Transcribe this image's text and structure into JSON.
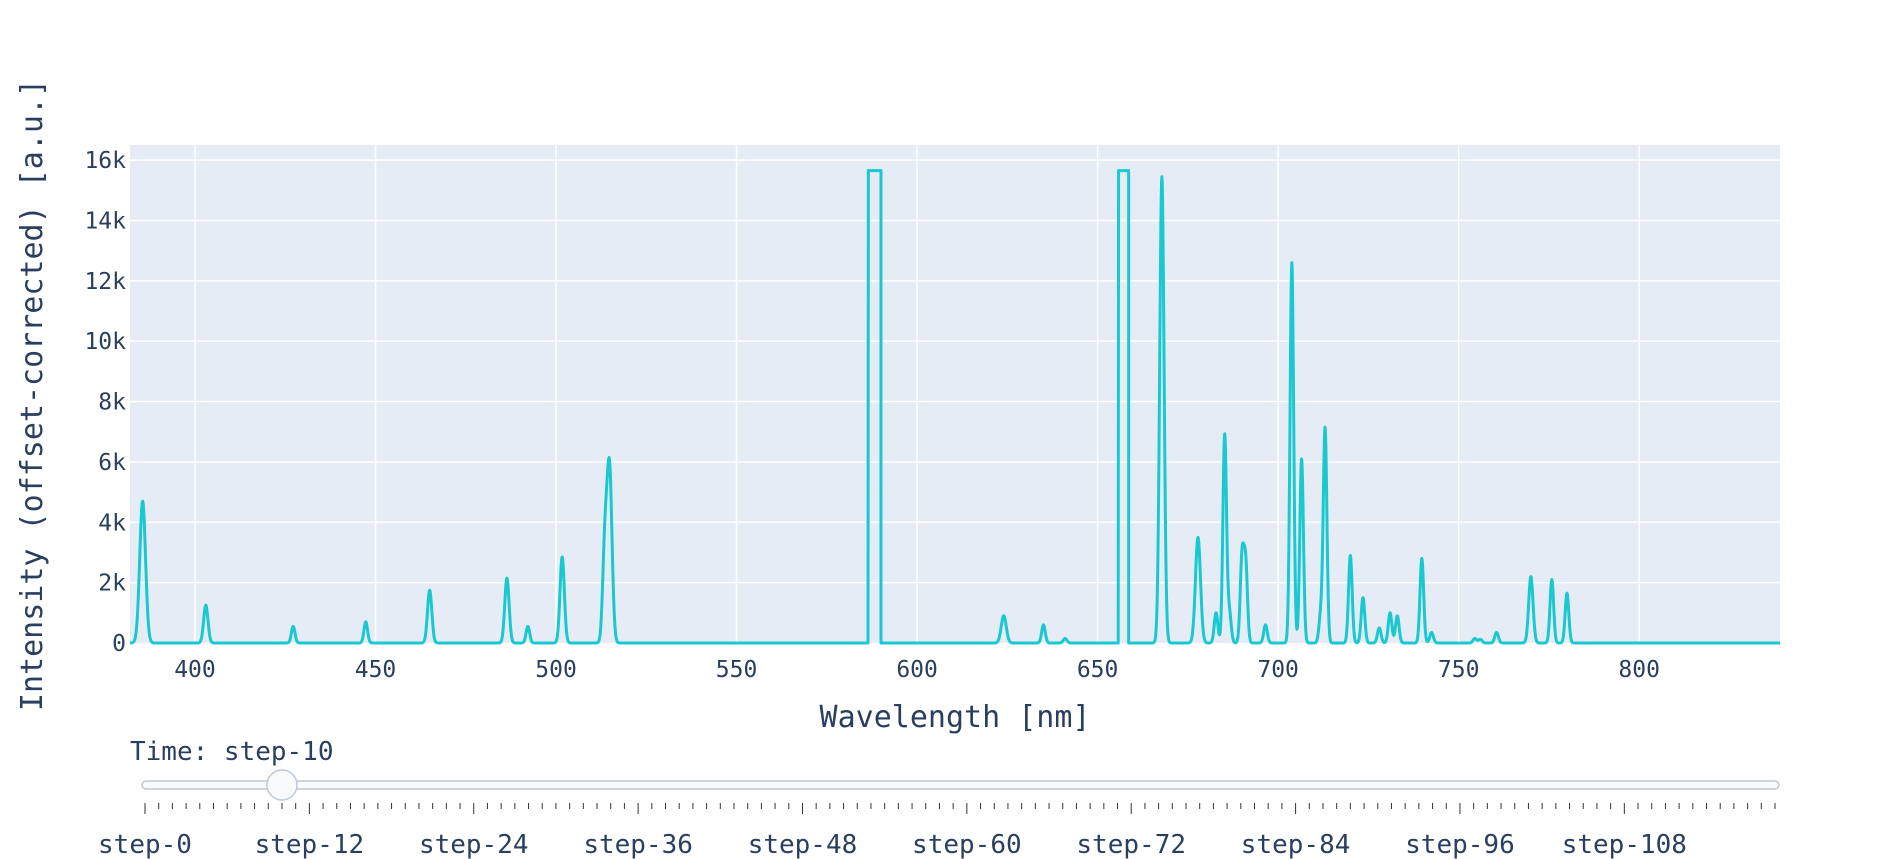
{
  "chart_data": {
    "type": "line",
    "xlabel": "Wavelength [nm]",
    "ylabel": "Intensity (offset-corrected) [a.u.]",
    "xlim": [
      382,
      839
    ],
    "ylim": [
      0,
      16500
    ],
    "x_ticks": [
      400,
      450,
      500,
      550,
      600,
      650,
      700,
      750,
      800
    ],
    "y_ticks": [
      0,
      2000,
      4000,
      6000,
      8000,
      10000,
      12000,
      14000,
      16000
    ],
    "y_tick_labels": [
      "0",
      "2k",
      "4k",
      "6k",
      "8k",
      "10k",
      "12k",
      "14k",
      "16k"
    ],
    "grid": true,
    "legend": false,
    "line_color": "#19c8d0",
    "plot_bgcolor": "#e5ecf6",
    "series": [
      {
        "peaks": [
          {
            "center": 385.5,
            "height": 4700,
            "width": 0.8
          },
          {
            "center": 403.0,
            "height": 1250,
            "width": 0.6
          },
          {
            "center": 427.2,
            "height": 550,
            "width": 0.5
          },
          {
            "center": 447.3,
            "height": 700,
            "width": 0.5
          },
          {
            "center": 465.0,
            "height": 1750,
            "width": 0.6
          },
          {
            "center": 486.4,
            "height": 2150,
            "width": 0.6
          },
          {
            "center": 492.2,
            "height": 550,
            "width": 0.5
          },
          {
            "center": 501.7,
            "height": 2850,
            "width": 0.6
          },
          {
            "center": 513.5,
            "height": 3000,
            "width": 0.6
          },
          {
            "center": 514.8,
            "height": 5800,
            "width": 0.7
          },
          {
            "center": 624.0,
            "height": 900,
            "width": 0.7
          },
          {
            "center": 635.0,
            "height": 600,
            "width": 0.5
          },
          {
            "center": 641.0,
            "height": 150,
            "width": 0.5
          },
          {
            "center": 667.8,
            "height": 15450,
            "width": 0.6
          },
          {
            "center": 677.8,
            "height": 3500,
            "width": 0.7
          },
          {
            "center": 682.8,
            "height": 1000,
            "width": 0.5
          },
          {
            "center": 685.2,
            "height": 6900,
            "width": 0.5
          },
          {
            "center": 686.5,
            "height": 1000,
            "width": 0.5
          },
          {
            "center": 690.0,
            "height": 2800,
            "width": 0.5
          },
          {
            "center": 691.0,
            "height": 2600,
            "width": 0.5
          },
          {
            "center": 696.5,
            "height": 600,
            "width": 0.5
          },
          {
            "center": 703.8,
            "height": 12600,
            "width": 0.5
          },
          {
            "center": 706.5,
            "height": 6100,
            "width": 0.5
          },
          {
            "center": 711.8,
            "height": 900,
            "width": 0.5
          },
          {
            "center": 713.0,
            "height": 7100,
            "width": 0.5
          },
          {
            "center": 720.0,
            "height": 2900,
            "width": 0.5
          },
          {
            "center": 723.5,
            "height": 1500,
            "width": 0.5
          },
          {
            "center": 728.0,
            "height": 500,
            "width": 0.5
          },
          {
            "center": 731.0,
            "height": 1000,
            "width": 0.5
          },
          {
            "center": 733.0,
            "height": 900,
            "width": 0.5
          },
          {
            "center": 739.8,
            "height": 2800,
            "width": 0.5
          },
          {
            "center": 742.5,
            "height": 350,
            "width": 0.5
          },
          {
            "center": 754.5,
            "height": 150,
            "width": 0.5
          },
          {
            "center": 756.0,
            "height": 120,
            "width": 0.5
          },
          {
            "center": 760.5,
            "height": 350,
            "width": 0.5
          },
          {
            "center": 770.0,
            "height": 2200,
            "width": 0.6
          },
          {
            "center": 775.8,
            "height": 2100,
            "width": 0.5
          },
          {
            "center": 780.0,
            "height": 1650,
            "width": 0.5
          }
        ],
        "saturated_bands": [
          {
            "start": 586.5,
            "end": 590.0,
            "height": 15650
          },
          {
            "start": 655.8,
            "end": 658.6,
            "height": 15650
          }
        ]
      }
    ]
  },
  "slider": {
    "current_label": "Time: step-10",
    "current_index": 10,
    "total_steps": 120,
    "step_labels": [
      "step-0",
      "step-12",
      "step-24",
      "step-36",
      "step-48",
      "step-60",
      "step-72",
      "step-84",
      "step-96",
      "step-108"
    ]
  }
}
